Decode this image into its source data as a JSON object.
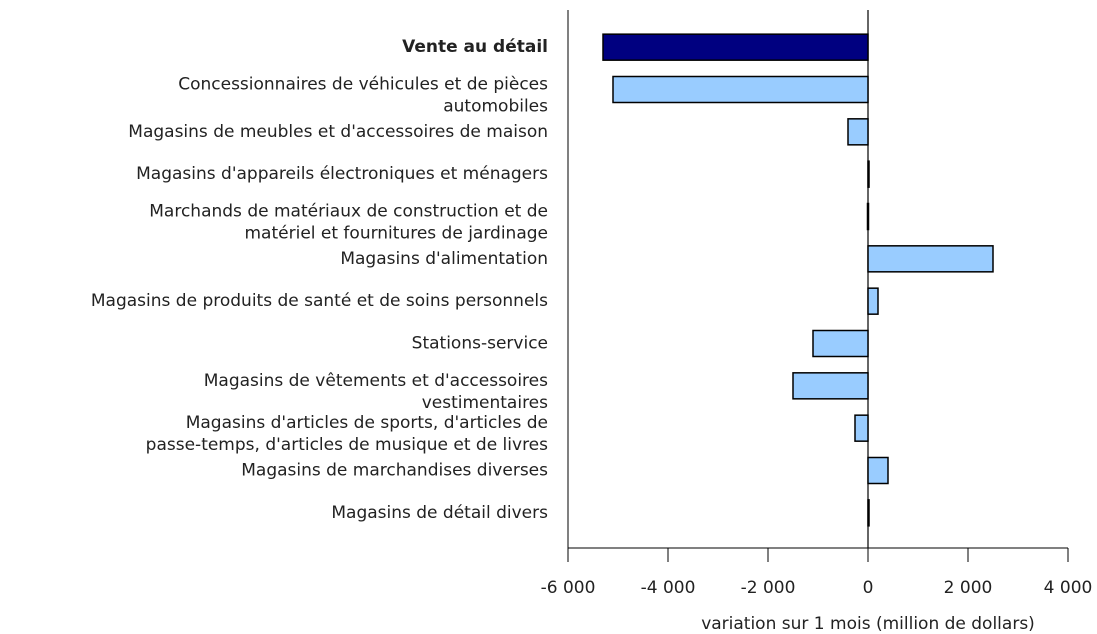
{
  "chart_data": {
    "type": "bar",
    "orientation": "horizontal",
    "x_label": "variation sur 1 mois (million de dollars)",
    "categories": [
      "Vente au détail",
      "Concessionnaires de véhicules et de pièces\nautomobiles",
      "Magasins de meubles et d'accessoires de maison",
      "Magasins d'appareils électroniques et ménagers",
      "Marchands de matériaux de construction et de\nmatériel et fournitures de jardinage",
      "Magasins d'alimentation",
      "Magasins de produits de santé et de soins personnels",
      "Stations-service",
      "Magasins de vêtements et d'accessoires\nvestimentaires",
      "Magasins d'articles de sports, d'articles de\npasse-temps, d'articles de musique et de livres",
      "Magasins de marchandises diverses",
      "Magasins de détail divers"
    ],
    "values": [
      -5300,
      -5100,
      -400,
      10,
      -10,
      2500,
      200,
      -1100,
      -1500,
      -260,
      400,
      10
    ],
    "colors": [
      "#000080",
      "#99ccff",
      "#99ccff",
      "#99ccff",
      "#99ccff",
      "#99ccff",
      "#99ccff",
      "#99ccff",
      "#99ccff",
      "#99ccff",
      "#99ccff",
      "#99ccff"
    ],
    "bold_categories": [
      0
    ],
    "xlim": [
      -6000,
      4000
    ],
    "xticks": [
      {
        "value": -6000,
        "label": "-6 000"
      },
      {
        "value": -4000,
        "label": "-4 000"
      },
      {
        "value": -2000,
        "label": "-2 000"
      },
      0,
      {
        "value": 2000,
        "label": "2 000"
      },
      {
        "value": 4000,
        "label": "4 000"
      }
    ]
  }
}
